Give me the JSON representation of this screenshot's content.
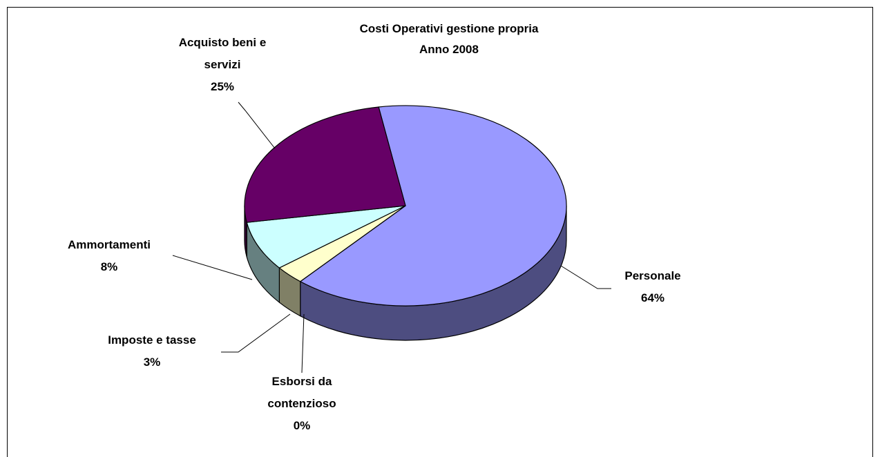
{
  "chart_data": {
    "type": "pie3d",
    "title": [
      "Costi Operativi gestione propria",
      "Anno 2008"
    ],
    "categories": [
      "Personale",
      "Esborsi da contenzioso",
      "Imposte e tasse",
      "Ammortamenti",
      "Acquisto beni e servizi"
    ],
    "values": [
      64,
      0,
      3,
      8,
      25
    ],
    "value_labels": [
      "64%",
      "0%",
      "3%",
      "8%",
      "25%"
    ],
    "colors": [
      "#9999ff",
      "#ff8080",
      "#ffffcc",
      "#ccffff",
      "#660066"
    ]
  }
}
